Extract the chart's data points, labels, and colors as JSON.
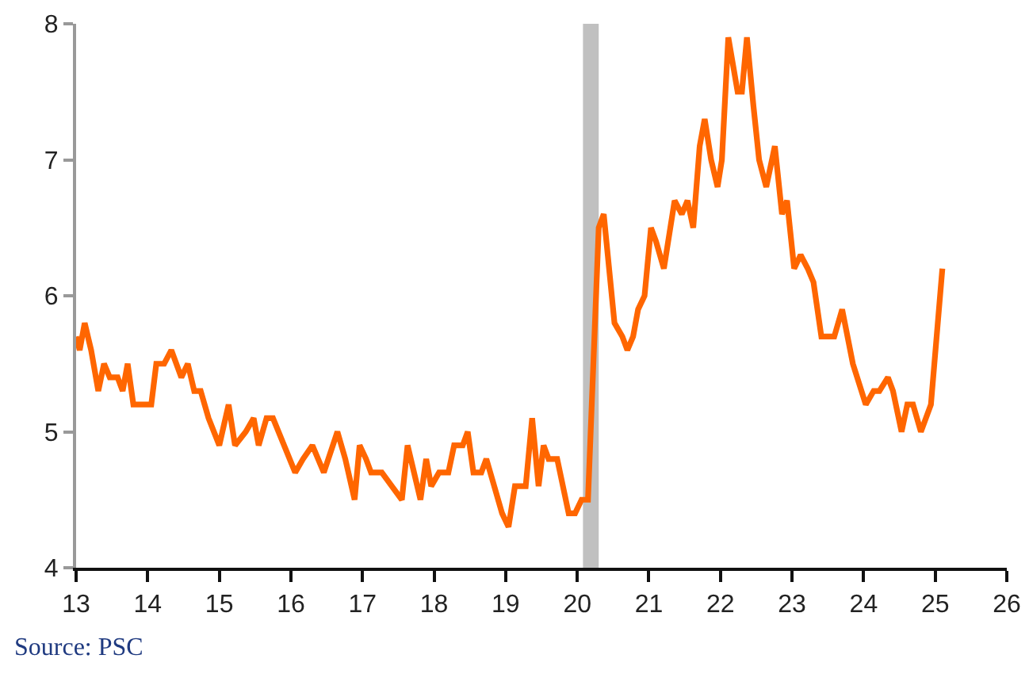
{
  "chart_data": {
    "type": "line",
    "x": [
      13.0,
      13.05,
      13.12,
      13.21,
      13.31,
      13.39,
      13.47,
      13.58,
      13.65,
      13.72,
      13.8,
      14.05,
      14.12,
      14.23,
      14.33,
      14.47,
      14.56,
      14.65,
      14.74,
      14.85,
      15.0,
      15.13,
      15.22,
      15.37,
      15.48,
      15.55,
      15.66,
      15.75,
      16.06,
      16.17,
      16.3,
      16.46,
      16.65,
      16.76,
      16.89,
      16.96,
      17.05,
      17.12,
      17.27,
      17.41,
      17.55,
      17.63,
      17.72,
      17.81,
      17.89,
      17.96,
      18.07,
      18.2,
      18.28,
      18.4,
      18.47,
      18.55,
      18.66,
      18.73,
      18.84,
      18.95,
      19.04,
      19.13,
      19.28,
      19.37,
      19.46,
      19.53,
      19.6,
      19.72,
      19.88,
      19.97,
      20.06,
      20.15,
      20.3,
      20.37,
      20.52,
      20.63,
      20.7,
      20.78,
      20.85,
      20.94,
      21.03,
      21.1,
      21.21,
      21.36,
      21.46,
      21.54,
      21.62,
      21.71,
      21.78,
      21.87,
      21.96,
      22.02,
      22.11,
      22.24,
      22.3,
      22.37,
      22.46,
      22.54,
      22.64,
      22.76,
      22.86,
      22.93,
      23.03,
      23.12,
      23.22,
      23.3,
      23.41,
      23.59,
      23.7,
      23.85,
      24.03,
      24.14,
      24.22,
      24.34,
      24.41,
      24.53,
      24.61,
      24.69,
      24.8,
      24.94,
      25.1
    ],
    "series": [
      {
        "color": "#ff6600",
        "values": [
          5.7,
          5.6,
          5.8,
          5.6,
          5.3,
          5.5,
          5.4,
          5.4,
          5.3,
          5.5,
          5.2,
          5.2,
          5.5,
          5.5,
          5.6,
          5.4,
          5.5,
          5.3,
          5.3,
          5.1,
          4.9,
          5.2,
          4.9,
          5.0,
          5.1,
          4.9,
          5.1,
          5.1,
          4.7,
          4.8,
          4.9,
          4.7,
          5.0,
          4.8,
          4.5,
          4.9,
          4.8,
          4.7,
          4.7,
          4.6,
          4.5,
          4.9,
          4.7,
          4.5,
          4.8,
          4.6,
          4.7,
          4.7,
          4.9,
          4.9,
          5.0,
          4.7,
          4.7,
          4.8,
          4.6,
          4.4,
          4.3,
          4.6,
          4.6,
          5.1,
          4.6,
          4.9,
          4.8,
          4.8,
          4.4,
          4.4,
          4.5,
          4.5,
          6.5,
          6.6,
          5.8,
          5.7,
          5.6,
          5.7,
          5.9,
          6.0,
          6.5,
          6.4,
          6.2,
          6.7,
          6.6,
          6.7,
          6.5,
          7.1,
          7.3,
          7.0,
          6.8,
          7.0,
          7.9,
          7.5,
          7.5,
          7.9,
          7.4,
          7.0,
          6.8,
          7.1,
          6.6,
          6.7,
          6.2,
          6.3,
          6.2,
          6.1,
          5.7,
          5.7,
          5.9,
          5.5,
          5.2,
          5.3,
          5.3,
          5.4,
          5.3,
          5.0,
          5.2,
          5.2,
          5.0,
          5.2,
          6.2
        ]
      }
    ],
    "xlim": [
      13,
      26
    ],
    "xticks": [
      13,
      14,
      15,
      16,
      17,
      18,
      19,
      20,
      21,
      22,
      23,
      24,
      25,
      26
    ],
    "ylim": [
      4,
      8
    ],
    "yticks": [
      4,
      5,
      6,
      7,
      8
    ],
    "bands": [
      {
        "axis": "x",
        "from": 20.08,
        "to": 20.3,
        "color": "#c0c0c0"
      }
    ],
    "annotations": [
      "Source: PSC"
    ],
    "grid": false,
    "marker": "none",
    "line_style": "solid"
  }
}
